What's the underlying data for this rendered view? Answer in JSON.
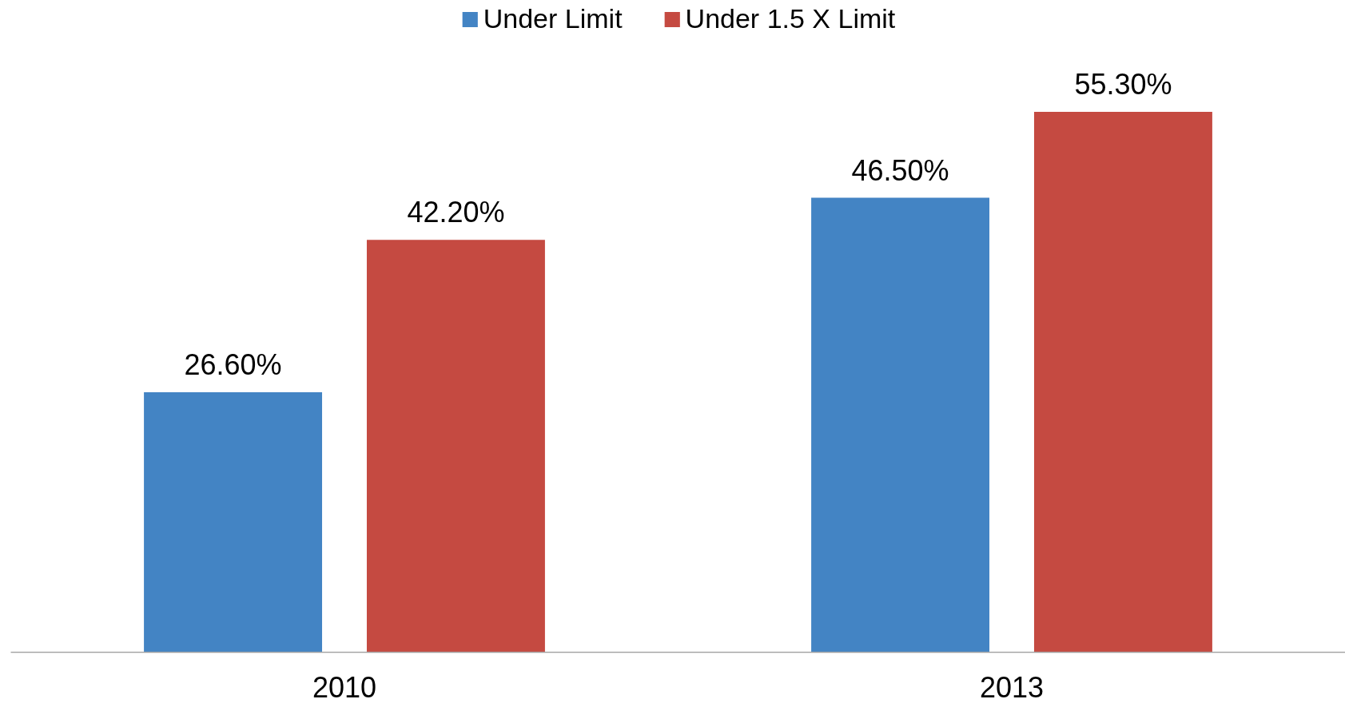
{
  "chart_data": {
    "type": "bar",
    "categories": [
      "2010",
      "2013"
    ],
    "series": [
      {
        "name": "Under Limit",
        "color": "#4384c4",
        "values": [
          26.6,
          46.5
        ],
        "value_labels": [
          "26.60%",
          "46.50%"
        ]
      },
      {
        "name": "Under 1.5 X Limit",
        "color": "#c54a41",
        "values": [
          42.2,
          55.3
        ],
        "value_labels": [
          "42.20%",
          "55.30%"
        ]
      }
    ],
    "legend": "top"
  }
}
